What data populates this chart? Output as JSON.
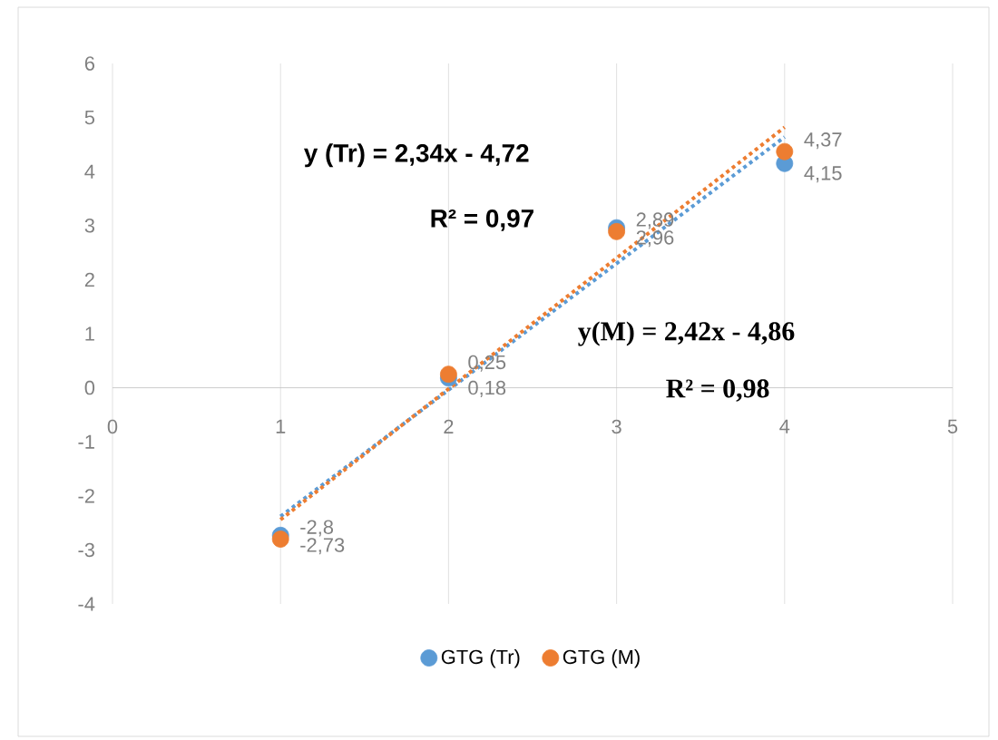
{
  "chart_data": {
    "type": "scatter",
    "xlim": [
      0,
      5
    ],
    "ylim": [
      -4,
      6
    ],
    "xticks": [
      0,
      1,
      2,
      3,
      4,
      5
    ],
    "yticks": [
      -4,
      -3,
      -2,
      -1,
      0,
      1,
      2,
      3,
      4,
      5,
      6
    ],
    "grid": true,
    "legend": "bottom",
    "marker": "circle",
    "series": [
      {
        "name": "GTG (Tr)",
        "color": "#5b9bd5",
        "x": [
          1,
          2,
          3,
          4
        ],
        "values": [
          -2.73,
          0.18,
          2.96,
          4.15
        ],
        "value_labels": [
          "-2,73",
          "0,18",
          "2,96",
          "4,15"
        ]
      },
      {
        "name": "GTG (M)",
        "color": "#ed7d31",
        "x": [
          1,
          2,
          3,
          4
        ],
        "values": [
          -2.8,
          0.25,
          2.89,
          4.37
        ],
        "value_labels": [
          "-2,8",
          "0,25",
          "2,89",
          "4,37"
        ]
      },
      {
        "type": "line",
        "color": "#5b9bd5",
        "x": [
          1,
          4
        ],
        "values": [
          -2.38,
          4.64
        ],
        "marker": "none",
        "line_style": "dotted"
      },
      {
        "type": "line",
        "color": "#ed7d31",
        "x": [
          1,
          4
        ],
        "values": [
          -2.44,
          4.82
        ],
        "marker": "none",
        "line_style": "dotted"
      }
    ],
    "annotations": [
      "y (Tr) = 2,34x - 4,72",
      "R² = 0,97",
      "y(M) = 2,42x - 4,86",
      "R² = 0,98"
    ]
  }
}
